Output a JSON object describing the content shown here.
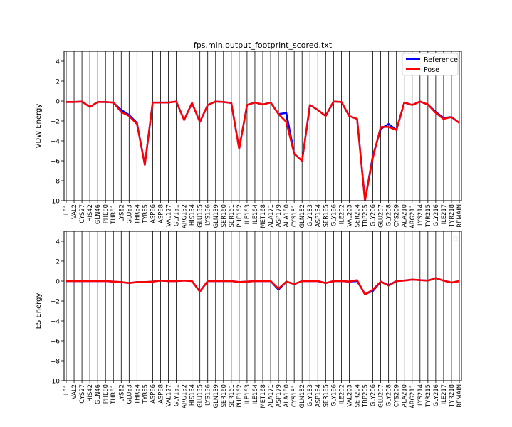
{
  "chart_data": [
    {
      "type": "line",
      "title": "fps.min.output_footprint_scored.txt",
      "ylabel": "VDW Energy",
      "xlabel": "",
      "ylim": [
        -10,
        5
      ],
      "yticks": [
        4,
        2,
        0,
        -2,
        -4,
        -6,
        -8,
        -10
      ],
      "grid": "vertical lines at every residue",
      "legend": "top-right",
      "categories": [
        "ILE1",
        "VAL2",
        "CYS27",
        "HIS42",
        "GLN46",
        "PHE80",
        "THR81",
        "LYS82",
        "GLU83",
        "THR84",
        "TYR85",
        "ASP86",
        "ASP88",
        "VAL127",
        "GLY131",
        "ARG132",
        "HIS134",
        "GLU135",
        "LYS136",
        "GLN139",
        "SER160",
        "SER161",
        "PHE162",
        "ILE163",
        "ILE164",
        "MET168",
        "ALA171",
        "ASP179",
        "ALA180",
        "CYS181",
        "GLN182",
        "GLY183",
        "ASP184",
        "SER185",
        "GLY186",
        "ILE202",
        "VAL203",
        "SER204",
        "TRP205",
        "GLY206",
        "GLU207",
        "GLY208",
        "CYS209",
        "ALA210",
        "ARG211",
        "LYS214",
        "TYR215",
        "GLY216",
        "ILE217",
        "TYR218",
        "REMAIN"
      ],
      "series": [
        {
          "name": "Reference",
          "color": "#0000ff",
          "values": [
            -0.1,
            -0.1,
            -0.05,
            -0.6,
            -0.1,
            -0.1,
            -0.15,
            -0.9,
            -1.4,
            -2.2,
            -6.4,
            -0.15,
            -0.15,
            -0.15,
            -0.05,
            -1.9,
            -0.2,
            -2.1,
            -0.4,
            -0.05,
            -0.1,
            -0.2,
            -4.8,
            -0.4,
            -0.15,
            -0.35,
            -0.15,
            -1.3,
            -1.2,
            -5.3,
            -6.0,
            -0.4,
            -0.9,
            -1.5,
            -0.05,
            -0.1,
            -1.5,
            -1.8,
            -10.0,
            -5.5,
            -2.8,
            -2.3,
            -2.9,
            -0.15,
            -0.4,
            -0.05,
            -0.35,
            -1.1,
            -1.7,
            -1.6,
            -2.2
          ]
        },
        {
          "name": "Pose",
          "color": "#ff0000",
          "values": [
            -0.1,
            -0.1,
            -0.05,
            -0.6,
            -0.1,
            -0.1,
            -0.15,
            -1.1,
            -1.5,
            -2.3,
            -6.4,
            -0.15,
            -0.15,
            -0.15,
            -0.05,
            -1.9,
            -0.2,
            -2.1,
            -0.4,
            -0.05,
            -0.1,
            -0.2,
            -4.8,
            -0.4,
            -0.15,
            -0.35,
            -0.15,
            -1.3,
            -2.1,
            -5.3,
            -6.0,
            -0.4,
            -0.9,
            -1.5,
            -0.05,
            -0.1,
            -1.5,
            -1.8,
            -10.0,
            -5.7,
            -2.6,
            -2.6,
            -2.9,
            -0.15,
            -0.4,
            -0.05,
            -0.35,
            -1.2,
            -1.8,
            -1.6,
            -2.2
          ]
        }
      ]
    },
    {
      "type": "line",
      "title": "",
      "ylabel": "ES Energy",
      "xlabel": "",
      "ylim": [
        -10,
        5
      ],
      "yticks": [
        4,
        2,
        0,
        -2,
        -4,
        -6,
        -8,
        -10
      ],
      "grid": "vertical lines at every residue",
      "legend": "top-right (empty)",
      "categories": [
        "ILE1",
        "VAL2",
        "CYS27",
        "HIS42",
        "GLN46",
        "PHE80",
        "THR81",
        "LYS82",
        "GLU83",
        "THR84",
        "TYR85",
        "ASP86",
        "ASP88",
        "VAL127",
        "GLY131",
        "ARG132",
        "HIS134",
        "GLU135",
        "LYS136",
        "GLN139",
        "SER160",
        "SER161",
        "PHE162",
        "ILE163",
        "ILE164",
        "MET168",
        "ALA171",
        "ASP179",
        "ALA180",
        "CYS181",
        "GLN182",
        "GLY183",
        "ASP184",
        "SER185",
        "GLY186",
        "ILE202",
        "VAL203",
        "SER204",
        "TRP205",
        "GLY206",
        "GLU207",
        "GLY208",
        "CYS209",
        "ALA210",
        "ARG211",
        "LYS214",
        "TYR215",
        "GLY216",
        "ILE217",
        "TYR218",
        "REMAIN"
      ],
      "series": [
        {
          "name": "Reference",
          "color": "#0000ff",
          "values": [
            0.0,
            0.0,
            0.0,
            0.0,
            0.0,
            0.0,
            -0.05,
            -0.1,
            -0.2,
            -0.1,
            -0.1,
            -0.05,
            0.05,
            0.0,
            0.0,
            0.05,
            0.0,
            -1.05,
            0.0,
            0.0,
            0.0,
            0.0,
            -0.1,
            -0.05,
            0.0,
            0.0,
            0.0,
            -0.85,
            -0.05,
            -0.3,
            0.0,
            0.0,
            0.0,
            -0.2,
            0.0,
            0.0,
            -0.05,
            0.0,
            -1.3,
            -1.0,
            -0.05,
            -0.4,
            0.0,
            0.05,
            0.15,
            0.1,
            0.05,
            0.3,
            0.05,
            -0.15,
            0.0
          ]
        },
        {
          "name": "Pose",
          "color": "#ff0000",
          "values": [
            0.0,
            0.0,
            0.0,
            0.0,
            0.0,
            0.0,
            -0.05,
            -0.1,
            -0.2,
            -0.1,
            -0.1,
            -0.05,
            0.05,
            0.0,
            0.0,
            0.05,
            0.0,
            -1.05,
            0.0,
            0.0,
            0.0,
            0.0,
            -0.1,
            -0.05,
            0.0,
            0.0,
            0.0,
            -0.75,
            -0.05,
            -0.3,
            0.0,
            0.0,
            0.0,
            -0.2,
            0.0,
            0.0,
            -0.05,
            0.1,
            -1.35,
            -0.85,
            -0.05,
            -0.45,
            0.0,
            0.05,
            0.15,
            0.1,
            0.05,
            0.3,
            0.05,
            -0.15,
            0.0
          ]
        }
      ]
    }
  ]
}
